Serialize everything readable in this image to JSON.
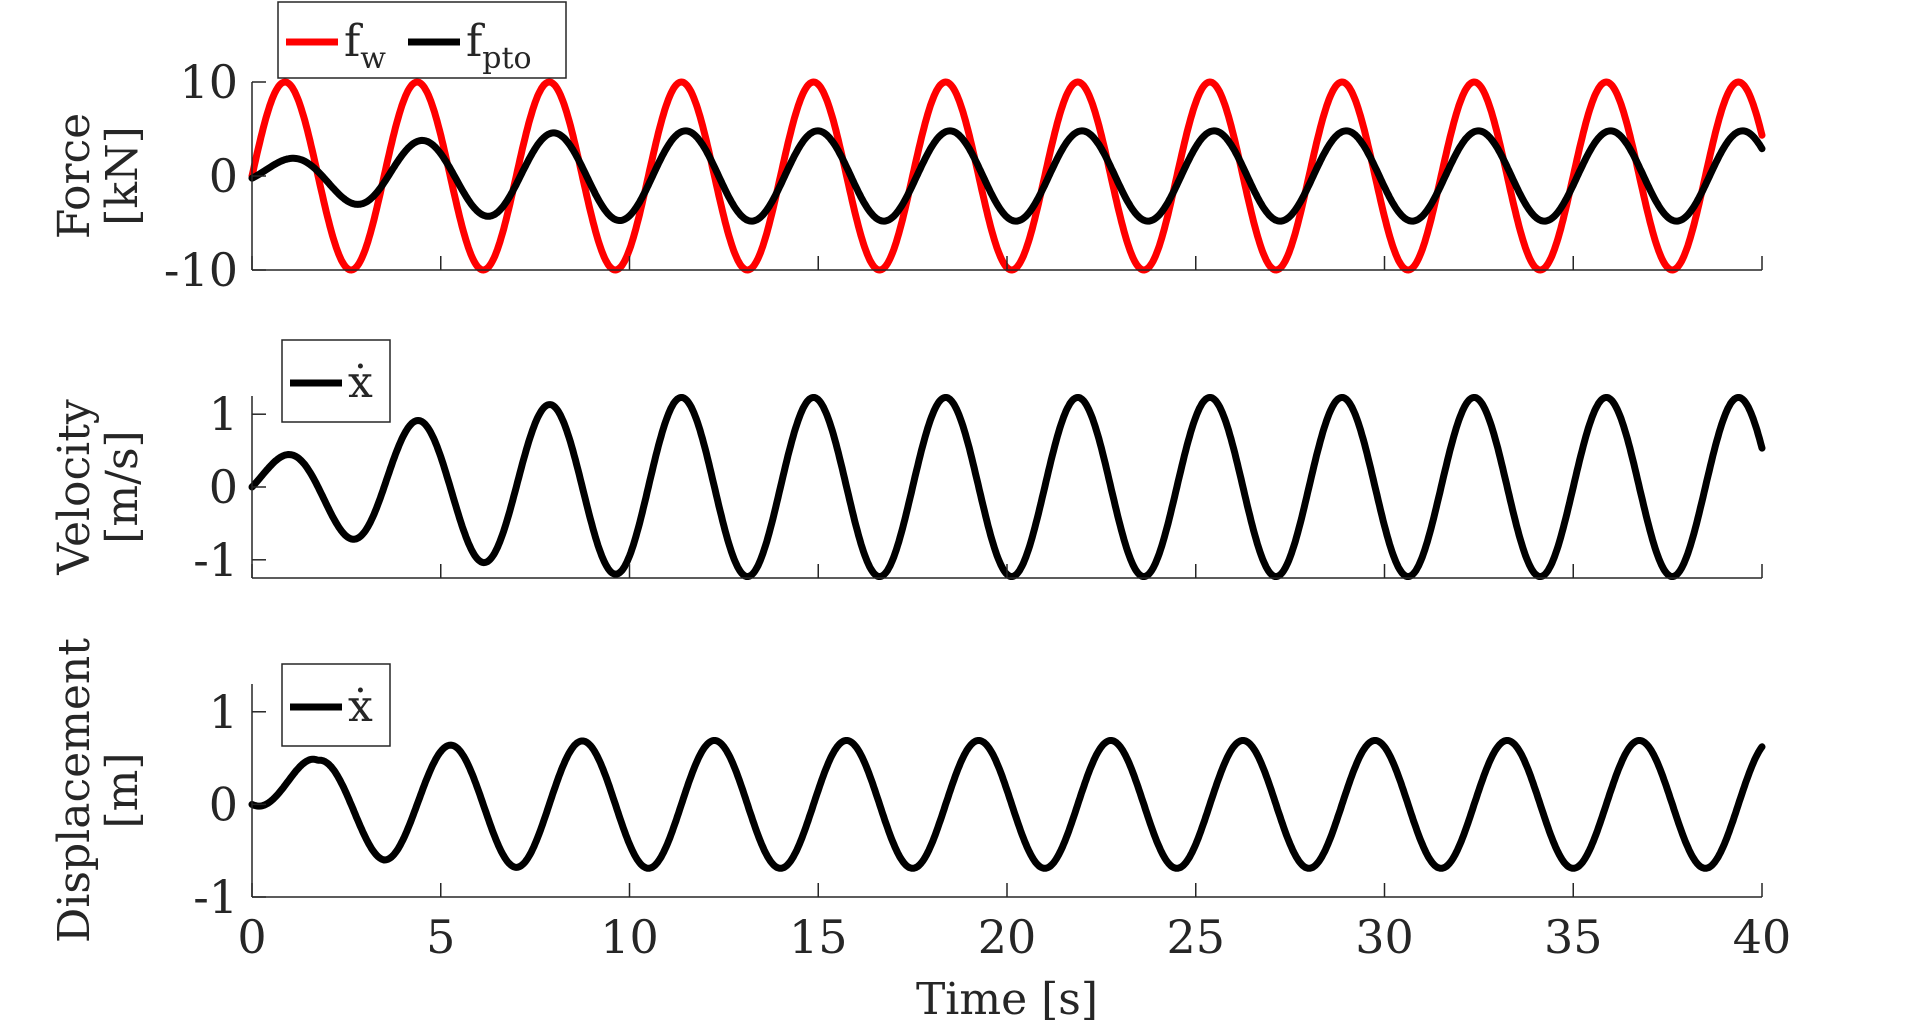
{
  "chart_data": [
    {
      "type": "line",
      "ylabel_lines": [
        "Force",
        "[kN]"
      ],
      "xlim": [
        0,
        40
      ],
      "ylim": [
        -10,
        10
      ],
      "yticks": [
        10,
        0,
        -10
      ],
      "ytick_labels": [
        "10",
        "0",
        "-10"
      ],
      "xtick_labels_shown": false,
      "legend": {
        "placement": "top-left",
        "entries": [
          {
            "base": "f",
            "sub": "w"
          },
          {
            "base": "f",
            "sub": "pto"
          }
        ]
      },
      "series": [
        {
          "name": "fw",
          "color": "#ff0000",
          "model": "sine",
          "amplitude": 10,
          "period": 3.5,
          "ramp": [
            0,
            0,
            0
          ],
          "phase": 0,
          "start": 0
        },
        {
          "name": "fpto",
          "color": "#000000",
          "model": "driven",
          "amplitude": 4.8,
          "period": 3.5,
          "ramp": [
            1.2,
            3.5,
            4.5
          ],
          "phase": -0.2,
          "start": 0
        }
      ]
    },
    {
      "type": "line",
      "ylabel_lines": [
        "Velocity",
        "[m/s]"
      ],
      "xlim": [
        0,
        40
      ],
      "ylim": [
        -1.25,
        1.25
      ],
      "yticks": [
        1,
        0,
        -1
      ],
      "ytick_labels": [
        "1",
        "0",
        "-1"
      ],
      "xtick_labels_shown": false,
      "legend": {
        "placement": "top-left",
        "entries": [
          {
            "base": "ẋ",
            "sub": ""
          }
        ]
      },
      "series": [
        {
          "name": "ẋ",
          "color": "#000000",
          "model": "driven",
          "amplitude": 1.23,
          "period": 3.5,
          "ramp": [
            0.3,
            0.85,
            1.1
          ],
          "phase": 0,
          "start": 0
        }
      ]
    },
    {
      "type": "line",
      "ylabel_lines": [
        "Displacement",
        "[m]"
      ],
      "xlim": [
        0,
        40
      ],
      "ylim": [
        -1,
        1.3
      ],
      "yticks": [
        1,
        0,
        -1
      ],
      "ytick_labels": [
        "1",
        "0",
        "-1"
      ],
      "xticks": [
        0,
        5,
        10,
        15,
        20,
        25,
        30,
        35,
        40
      ],
      "xtick_labels": [
        "0",
        "5",
        "10",
        "15",
        "20",
        "25",
        "30",
        "35",
        "40"
      ],
      "xlabel": "Time [s]",
      "legend": {
        "placement": "top-left",
        "entries": [
          {
            "base": "ẋ",
            "sub": ""
          }
        ]
      },
      "series": [
        {
          "name": "ẋ",
          "color": "#000000",
          "model": "driven",
          "amplitude": 0.69,
          "period": 3.5,
          "ramp": [
            0.35,
            0.6,
            0.68
          ],
          "phase": -1.5708,
          "start": 0
        }
      ]
    }
  ]
}
